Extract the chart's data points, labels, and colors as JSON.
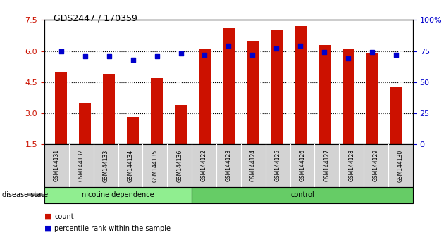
{
  "title": "GDS2447 / 170359",
  "samples": [
    "GSM144131",
    "GSM144132",
    "GSM144133",
    "GSM144134",
    "GSM144135",
    "GSM144136",
    "GSM144122",
    "GSM144123",
    "GSM144124",
    "GSM144125",
    "GSM144126",
    "GSM144127",
    "GSM144128",
    "GSM144129",
    "GSM144130"
  ],
  "bar_values": [
    5.0,
    3.5,
    4.9,
    2.8,
    4.7,
    3.4,
    6.1,
    7.1,
    6.5,
    7.0,
    7.2,
    6.3,
    6.1,
    5.9,
    4.3
  ],
  "dot_values": [
    75,
    71,
    71,
    68,
    71,
    73,
    72,
    79,
    72,
    77,
    79,
    74,
    69,
    74,
    72
  ],
  "group1_label": "nicotine dependence",
  "group2_label": "control",
  "group1_count": 6,
  "group2_count": 9,
  "ylim_left": [
    1.5,
    7.5
  ],
  "ylim_right": [
    0,
    100
  ],
  "yticks_left": [
    1.5,
    3.0,
    4.5,
    6.0,
    7.5
  ],
  "yticks_right": [
    0,
    25,
    50,
    75,
    100
  ],
  "bar_color": "#CC1100",
  "dot_color": "#0000CC",
  "group1_color": "#90EE90",
  "group2_color": "#66CC66",
  "header_bg": "#D3D3D3",
  "legend_count_label": "count",
  "legend_pct_label": "percentile rank within the sample",
  "disease_state_label": "disease state",
  "hline_positions": [
    3.0,
    4.5,
    6.0
  ]
}
